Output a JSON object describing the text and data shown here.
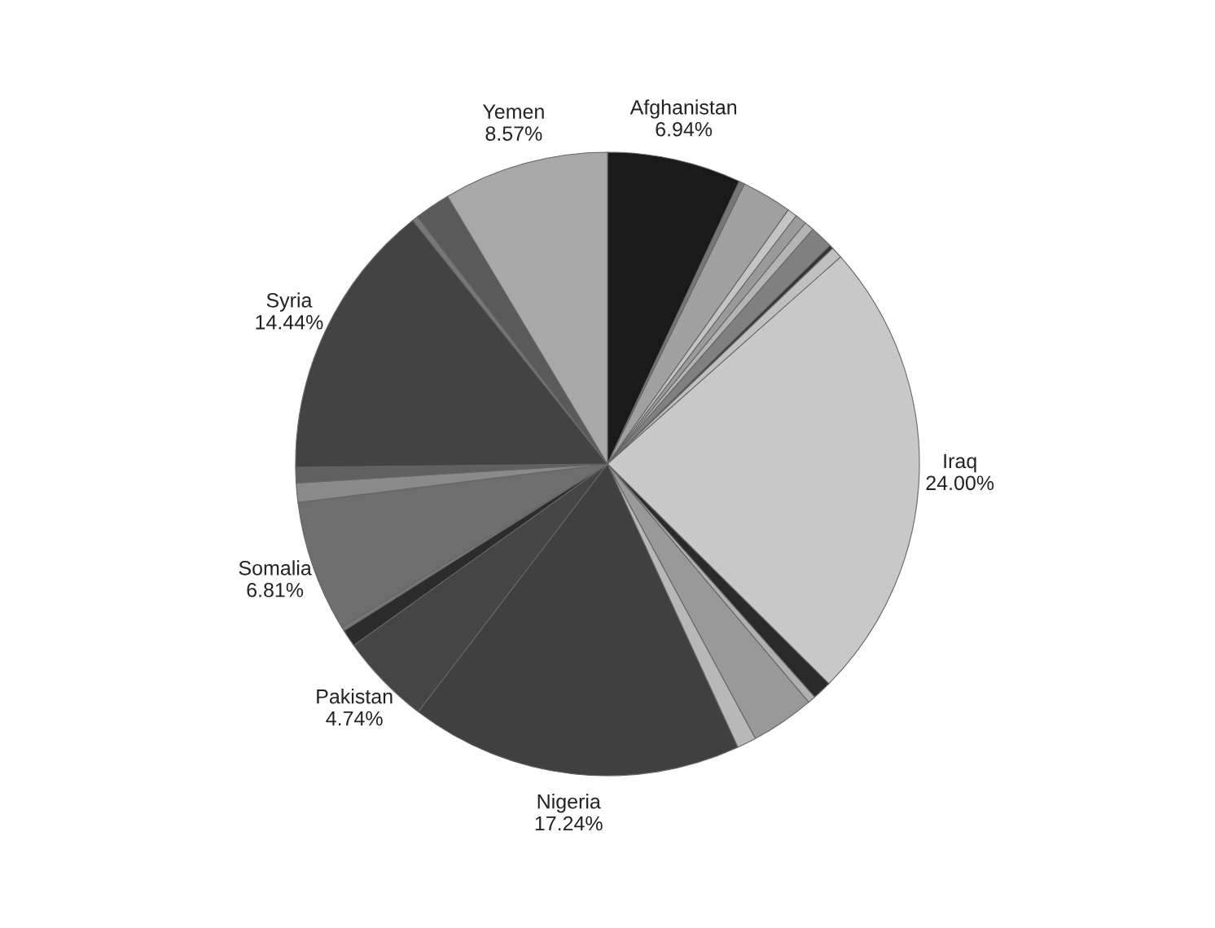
{
  "chart_data": {
    "type": "pie",
    "categories": [
      "Afghanistan",
      null,
      null,
      null,
      null,
      null,
      null,
      null,
      null,
      "Iraq",
      null,
      null,
      null,
      null,
      "Nigeria",
      "Pakistan",
      null,
      null,
      "Somalia",
      null,
      null,
      "Syria",
      null,
      null,
      "Yemen"
    ],
    "values": [
      6.94,
      0.3,
      2.6,
      0.5,
      0.6,
      0.5,
      1.2,
      0.2,
      0.6,
      24.0,
      1.0,
      0.4,
      3.3,
      1.0,
      17.24,
      4.74,
      0.9,
      0.2,
      6.81,
      1.0,
      0.8,
      14.44,
      0.3,
      1.86,
      8.57
    ],
    "value_labels": [
      "6.94%",
      null,
      null,
      null,
      null,
      null,
      null,
      null,
      null,
      "24.00%",
      null,
      null,
      null,
      null,
      "17.24%",
      "4.74%",
      null,
      null,
      "6.81%",
      null,
      null,
      "14.44%",
      null,
      null,
      "8.57%"
    ],
    "colors": [
      "#1a1a1a",
      "#777777",
      "#a0a0a0",
      "#c4c4c4",
      "#9a9a9a",
      "#b4b4b4",
      "#808080",
      "#333333",
      "#c0c0c0",
      "#c8c8c8",
      "#2a2a2a",
      "#b0b0b0",
      "#999999",
      "#b8b8b8",
      "#404040",
      "#454545",
      "#2c2c2c",
      "#777777",
      "#6e6e6e",
      "#8a8a8a",
      "#606060",
      "#434343",
      "#777777",
      "#5a5a5a",
      "#a8a8a8"
    ]
  }
}
